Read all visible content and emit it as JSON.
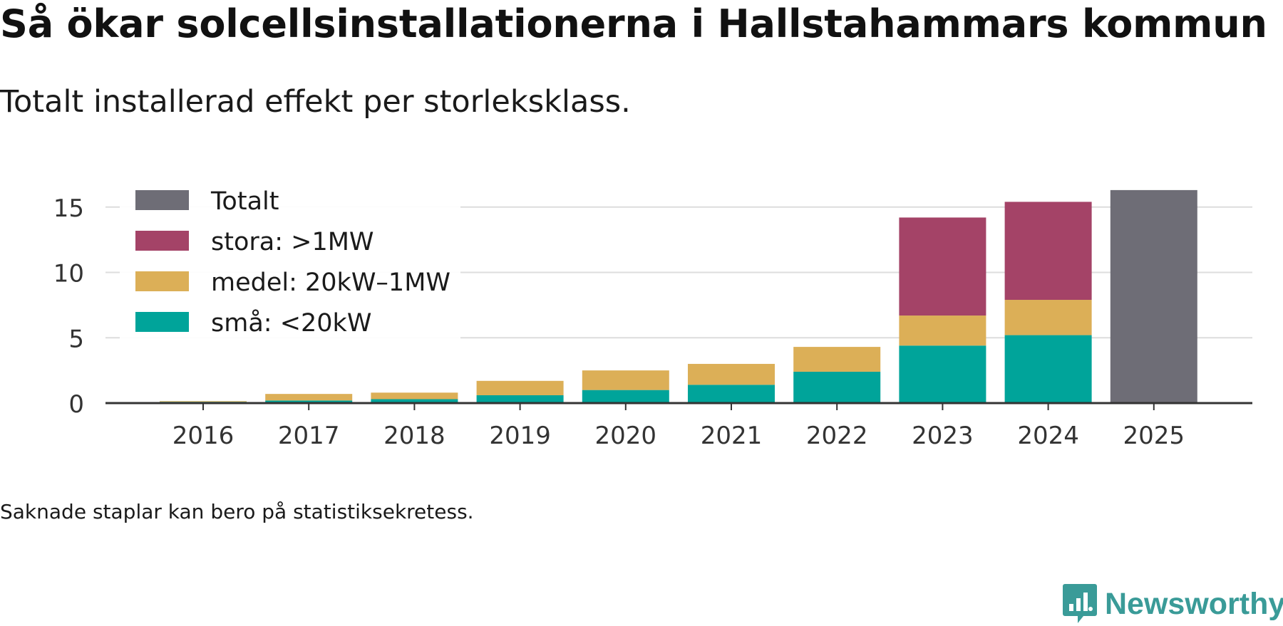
{
  "header": {
    "title": "Så ökar solcellsinstallationerna i Hallstahammars kommun",
    "subtitle": "Totalt installerad effekt per storleksklass."
  },
  "footer": {
    "note": "Saknade staplar kan bero på statistiksekretess.",
    "brand": "Newsworthy"
  },
  "colors": {
    "small": "#00a49a",
    "medium": "#dcaf57",
    "large": "#a44367",
    "total": "#6e6d76",
    "grid": "#dddddd",
    "axis": "#333333",
    "brand": "#3a9b98"
  },
  "chart_data": {
    "type": "bar",
    "stacked": true,
    "title": "Så ökar solcellsinstallationerna i Hallstahammars kommun",
    "subtitle": "Totalt installerad effekt per storleksklass.",
    "xlabel": "",
    "ylabel": "",
    "categories": [
      "2016",
      "2017",
      "2018",
      "2019",
      "2020",
      "2021",
      "2022",
      "2023",
      "2024",
      "2025"
    ],
    "yticks": [
      0,
      5,
      10,
      15
    ],
    "ytick_labels": [
      "0",
      "5",
      "10",
      "15"
    ],
    "ylim": [
      0,
      16.5
    ],
    "grid": true,
    "legend_position": "top-left",
    "series": [
      {
        "name": "små: <20kW",
        "key": "small",
        "values": [
          0.1,
          0.2,
          0.3,
          0.6,
          1.0,
          1.4,
          2.4,
          4.4,
          5.2,
          null
        ]
      },
      {
        "name": "medel: 20kW–1MW",
        "key": "medium",
        "values": [
          0.05,
          0.5,
          0.5,
          1.1,
          1.5,
          1.6,
          1.9,
          2.3,
          2.7,
          null
        ]
      },
      {
        "name": "stora: >1MW",
        "key": "large",
        "values": [
          null,
          null,
          null,
          null,
          null,
          null,
          null,
          7.5,
          7.5,
          null
        ]
      },
      {
        "name": "Totalt",
        "key": "total",
        "values": [
          null,
          null,
          null,
          null,
          null,
          null,
          null,
          null,
          null,
          16.3
        ]
      }
    ],
    "legend": [
      "Totalt",
      "stora: >1MW",
      "medel: 20kW–1MW",
      "små: <20kW"
    ]
  }
}
